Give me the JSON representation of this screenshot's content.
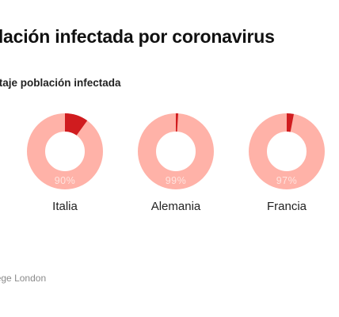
{
  "title": "Población infectada por coronavirus",
  "subtitle": "Porcentaje población infectada",
  "source": "Fuente: Imperial College London",
  "colors": {
    "infected": "#d01c1f",
    "not_infected": "#ffb2a8",
    "value_label": "#ffe4df"
  },
  "chart_data": {
    "type": "pie",
    "style": "donut",
    "charts": [
      {
        "category": "Italia",
        "infected_pct": 10,
        "not_infected_pct": 90,
        "label": "90%"
      },
      {
        "category": "Alemania",
        "infected_pct": 1,
        "not_infected_pct": 99,
        "label": "99%"
      },
      {
        "category": "Francia",
        "infected_pct": 3,
        "not_infected_pct": 97,
        "label": "97%"
      }
    ]
  }
}
